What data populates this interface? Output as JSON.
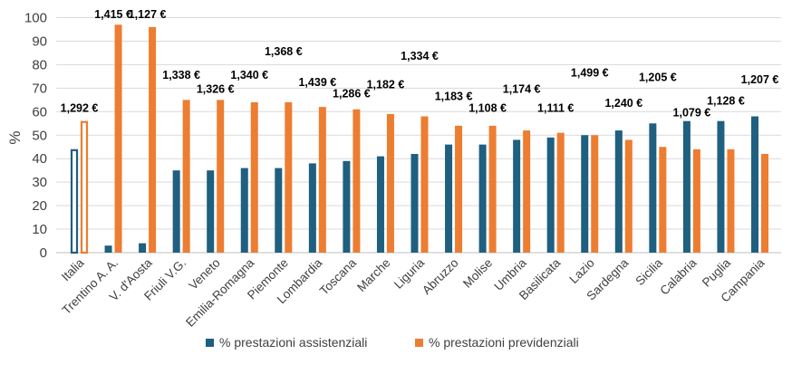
{
  "chart_data": {
    "type": "bar",
    "title": "",
    "xlabel": "",
    "ylabel": "%",
    "ylim": [
      0,
      100
    ],
    "yticks": [
      0,
      10,
      20,
      30,
      40,
      50,
      60,
      70,
      80,
      90,
      100
    ],
    "grid": true,
    "legend_position": "bottom",
    "categories": [
      "Italia",
      "Trentino A. A.",
      "V. d'Aosta",
      "Friuli V.G.",
      "Veneto",
      "Emilia-Romagna",
      "Piemonte",
      "Lombardia",
      "Toscana",
      "Marche",
      "Liguria",
      "Abruzzo",
      "Molise",
      "Umbria",
      "Basilicata",
      "Lazio",
      "Sardegna",
      "Sicilia",
      "Calabria",
      "Puglia",
      "Campania"
    ],
    "series": [
      {
        "name": "% prestazioni assistenziali",
        "color": "#1f5f80",
        "values": [
          44,
          3,
          4,
          35,
          35,
          36,
          36,
          38,
          39,
          41,
          42,
          46,
          46,
          48,
          49,
          50,
          52,
          55,
          56,
          56,
          58
        ]
      },
      {
        "name": "% prestazioni previdenziali",
        "color": "#ed7d31",
        "values": [
          56,
          97,
          96,
          65,
          65,
          64,
          64,
          62,
          61,
          59,
          58,
          54,
          54,
          52,
          51,
          50,
          48,
          45,
          44,
          44,
          42
        ]
      }
    ],
    "highlight_category": "Italia",
    "data_labels": [
      "1,292 €",
      "1,415 €",
      "1,127 €",
      "1,338 €",
      "1,326 €",
      "1,340 €",
      "1,368 €",
      "1,439 €",
      "1,286 €",
      "1,182 €",
      "1,334 €",
      "1,183 €",
      "1,108 €",
      "1,174 €",
      "1,111 €",
      "1,499 €",
      "1,240 €",
      "1,205 €",
      "1,079 €",
      "1,128 €",
      "1,207 €"
    ],
    "data_label_values": [
      60,
      103,
      103,
      74,
      68,
      74,
      84,
      71,
      66,
      70,
      82,
      65,
      60,
      68,
      60,
      75,
      62,
      73,
      58,
      63,
      72
    ]
  }
}
